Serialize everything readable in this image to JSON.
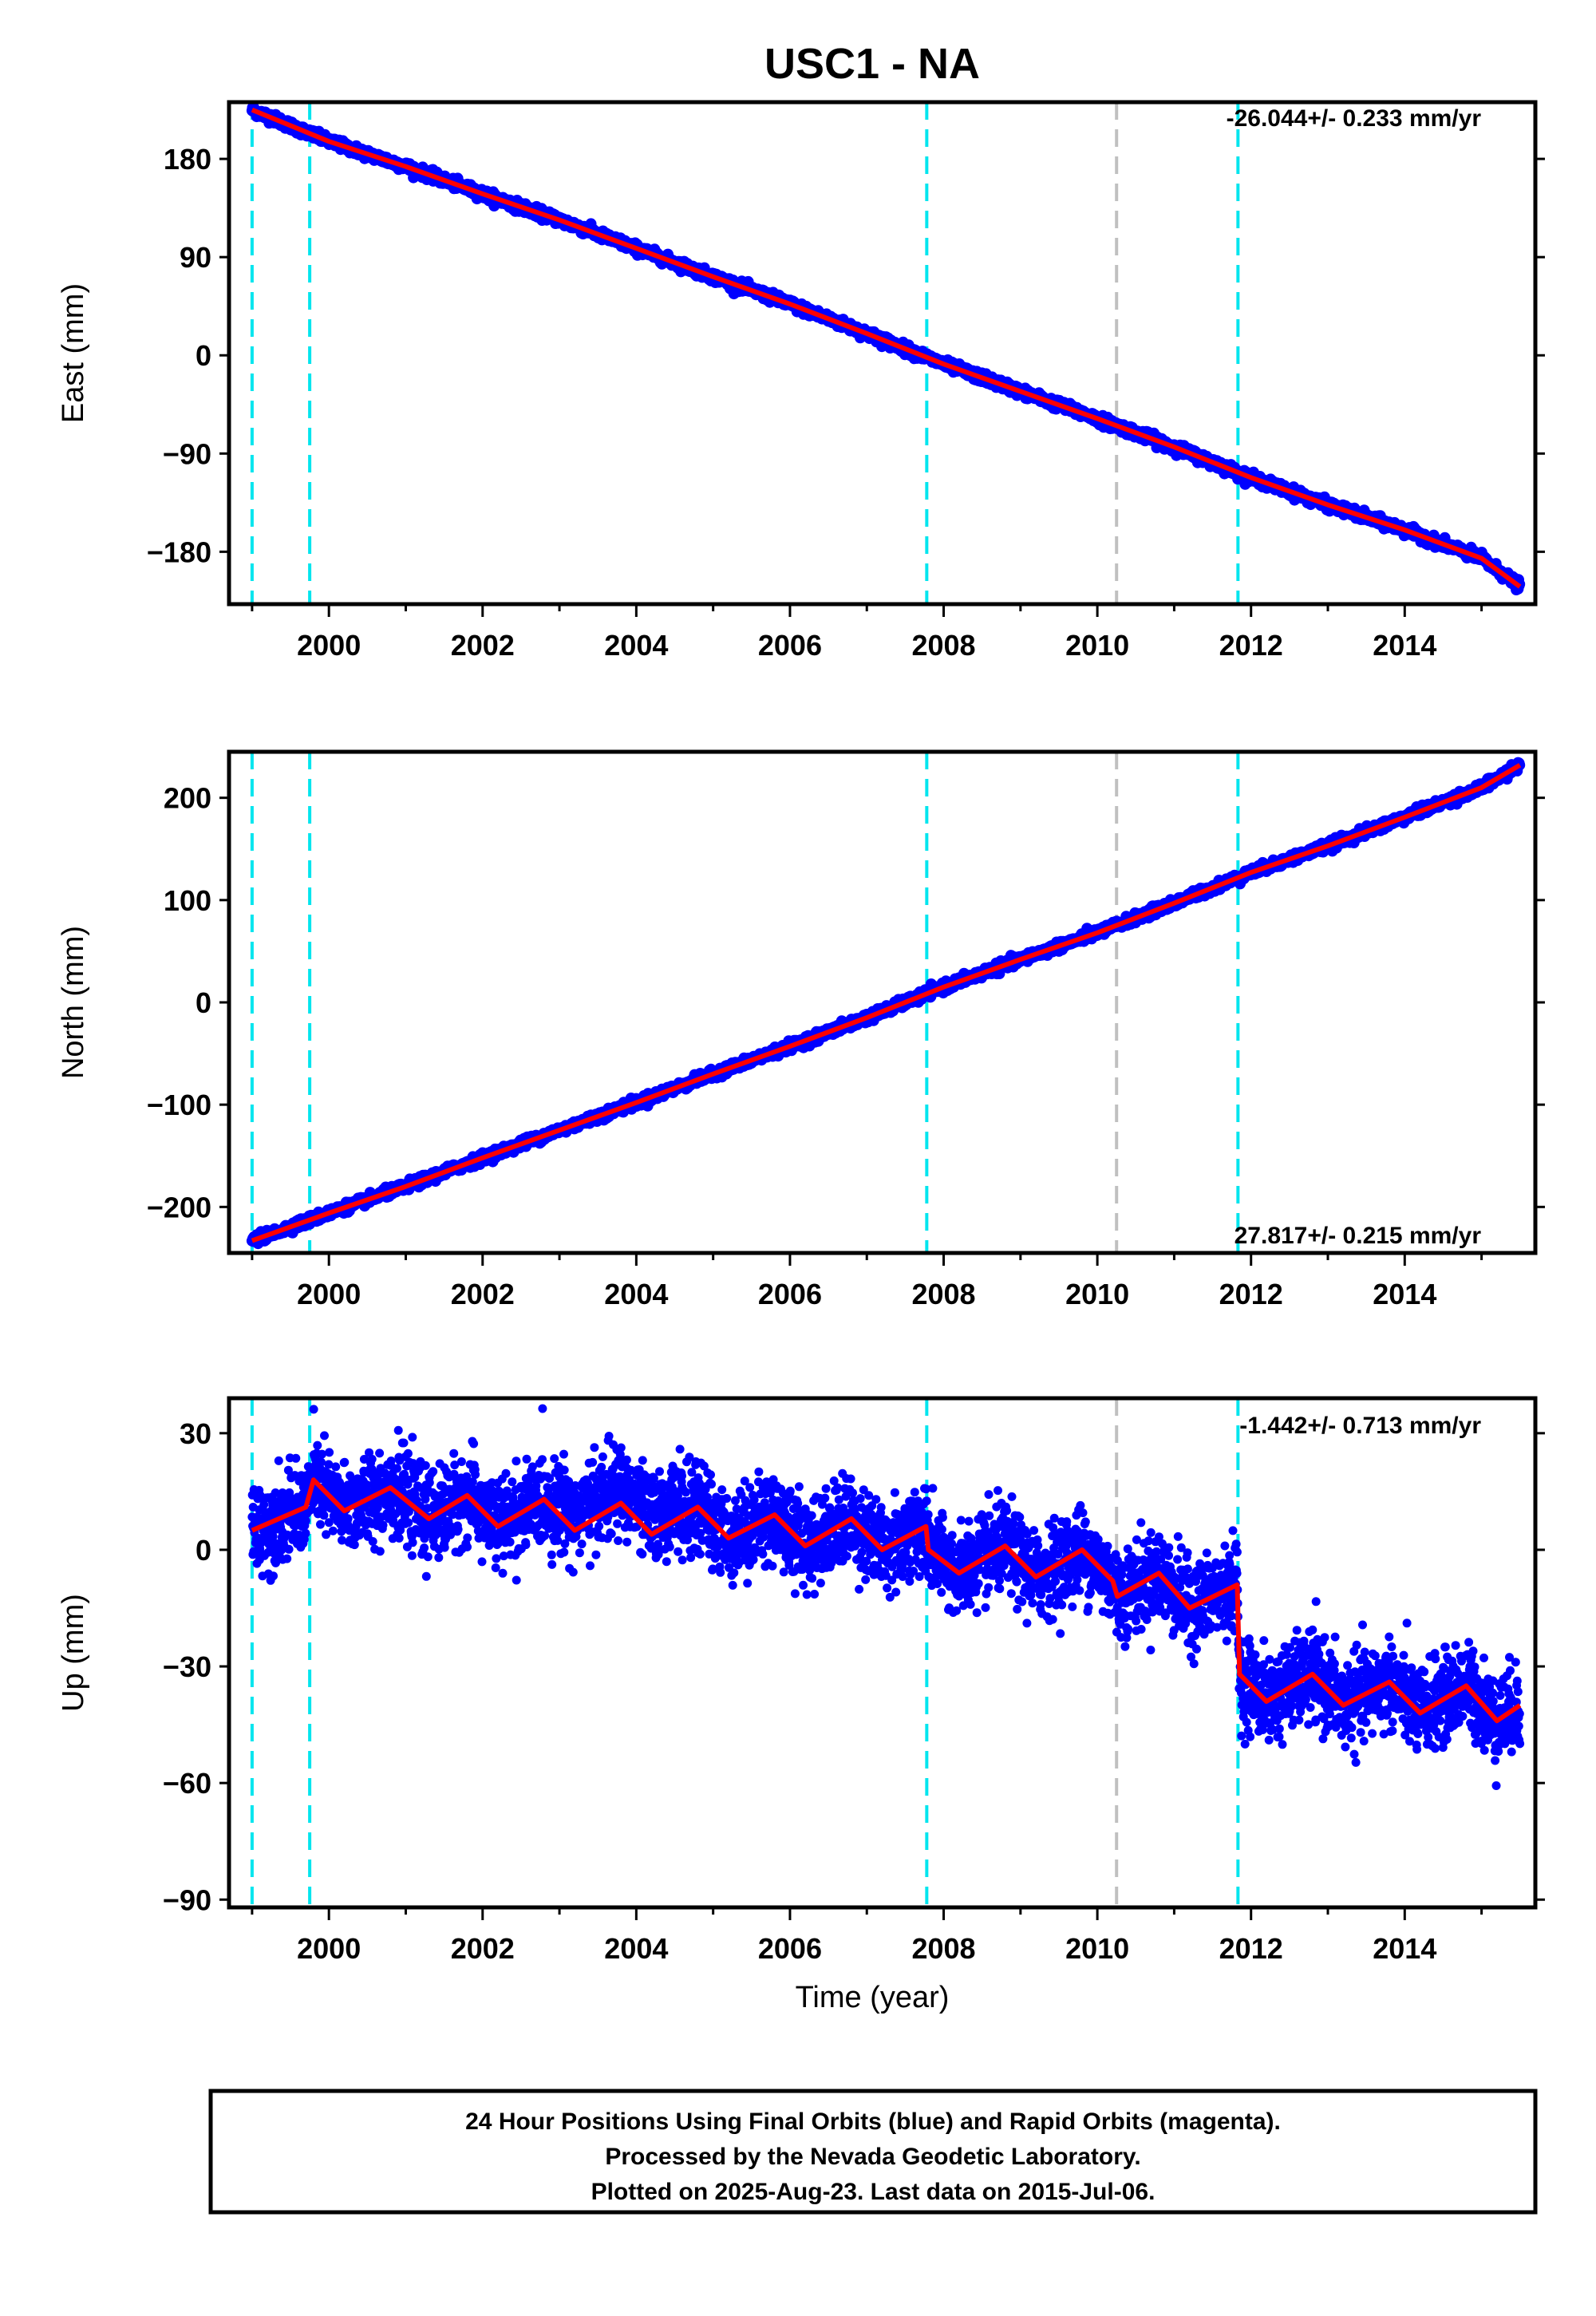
{
  "title": "USC1 - NA",
  "colors": {
    "final_orbits": "#0000ff",
    "model": "#ff0000",
    "equipment_change": "#00e5ee",
    "other_event": "#c0c0c0"
  },
  "events": {
    "cyan_dashed": [
      1999.0,
      1999.75,
      2007.78,
      2011.83
    ],
    "gray_dashed": [
      2010.25
    ]
  },
  "chart_data": [
    {
      "type": "scatter",
      "panel": "east",
      "ylabel": "East (mm)",
      "ylim": [
        -228,
        232
      ],
      "xlim": [
        1998.7,
        2015.7
      ],
      "yticks": [
        180,
        90,
        0,
        -90,
        -180
      ],
      "ytick_labels": [
        "180",
        "90",
        "0",
        "−90",
        "−180"
      ],
      "xticks": [
        2000,
        2002,
        2004,
        2006,
        2008,
        2010,
        2012,
        2014
      ],
      "xtick_labels": [
        "2000",
        "2002",
        "2004",
        "2006",
        "2008",
        "2010",
        "2012",
        "2014"
      ],
      "rate_label": "-26.044+/- 0.233 mm/yr",
      "series": [
        {
          "x": [
            1999.0,
            2000.0,
            2001.0,
            2002.0,
            2003.0,
            2004.0,
            2005.0,
            2006.0,
            2007.0,
            2008.0,
            2009.0,
            2010.0,
            2011.0,
            2012.0,
            2013.0,
            2014.0,
            2015.0,
            2015.5
          ],
          "values": [
            225,
            196,
            173,
            148,
            124,
            98,
            72,
            47,
            20,
            -8,
            -33,
            -58,
            -84,
            -112,
            -137,
            -160,
            -186,
            -212
          ]
        }
      ]
    },
    {
      "type": "scatter",
      "panel": "north",
      "ylabel": "North (mm)",
      "ylim": [
        -245,
        245
      ],
      "xlim": [
        1998.7,
        2015.7
      ],
      "yticks": [
        200,
        100,
        0,
        -100,
        -200
      ],
      "ytick_labels": [
        "200",
        "100",
        "0",
        "−100",
        "−200"
      ],
      "xticks": [
        2000,
        2002,
        2004,
        2006,
        2008,
        2010,
        2012,
        2014
      ],
      "xtick_labels": [
        "2000",
        "2002",
        "2004",
        "2006",
        "2008",
        "2010",
        "2012",
        "2014"
      ],
      "rate_label": "27.817+/- 0.215 mm/yr",
      "series": [
        {
          "x": [
            1999.0,
            2000.0,
            2001.0,
            2002.0,
            2003.0,
            2004.0,
            2005.0,
            2006.0,
            2007.0,
            2008.0,
            2009.0,
            2010.0,
            2011.0,
            2012.0,
            2013.0,
            2014.0,
            2015.0,
            2015.5
          ],
          "values": [
            -233,
            -206,
            -180,
            -152,
            -125,
            -98,
            -70,
            -43,
            -15,
            15,
            42,
            68,
            97,
            127,
            153,
            181,
            210,
            232
          ]
        }
      ]
    },
    {
      "type": "scatter",
      "panel": "up",
      "ylabel": "Up (mm)",
      "xlabel": "Time (year)",
      "ylim": [
        -92,
        39
      ],
      "xlim": [
        1998.7,
        2015.7
      ],
      "yticks": [
        30,
        0,
        -30,
        -60,
        -90
      ],
      "ytick_labels": [
        "30",
        "0",
        "−30",
        "−60",
        "−90"
      ],
      "xticks": [
        2000,
        2002,
        2004,
        2006,
        2008,
        2010,
        2012,
        2014
      ],
      "xtick_labels": [
        "2000",
        "2002",
        "2004",
        "2006",
        "2008",
        "2010",
        "2012",
        "2014"
      ],
      "rate_label": "-1.442+/- 0.713 mm/yr",
      "series": [
        {
          "x": [
            1999.0,
            1999.7,
            1999.8,
            2000.2,
            2000.8,
            2001.3,
            2001.8,
            2002.2,
            2002.8,
            2003.2,
            2003.8,
            2004.2,
            2004.8,
            2005.2,
            2005.8,
            2006.2,
            2006.8,
            2007.2,
            2007.77,
            2007.8,
            2008.2,
            2008.8,
            2009.2,
            2009.8,
            2010.2,
            2010.26,
            2010.8,
            2011.2,
            2011.82,
            2011.85,
            2012.2,
            2012.8,
            2013.2,
            2013.8,
            2014.2,
            2014.8,
            2015.2,
            2015.5
          ],
          "values": [
            5,
            11,
            18,
            10,
            16,
            8,
            14,
            6,
            13,
            5,
            12,
            4,
            11,
            3,
            9,
            1,
            8,
            0,
            6,
            0,
            -6,
            1,
            -7,
            0,
            -8,
            -12,
            -6,
            -15,
            -9,
            -32,
            -39,
            -32,
            -40,
            -34,
            -42,
            -35,
            -44,
            -40
          ]
        }
      ]
    }
  ],
  "footer": {
    "line1": "24 Hour Positions Using Final Orbits (blue) and Rapid Orbits (magenta).",
    "line2": "Processed by the Nevada Geodetic Laboratory.",
    "line3": "Plotted on 2025-Aug-23. Last data on 2015-Jul-06."
  }
}
